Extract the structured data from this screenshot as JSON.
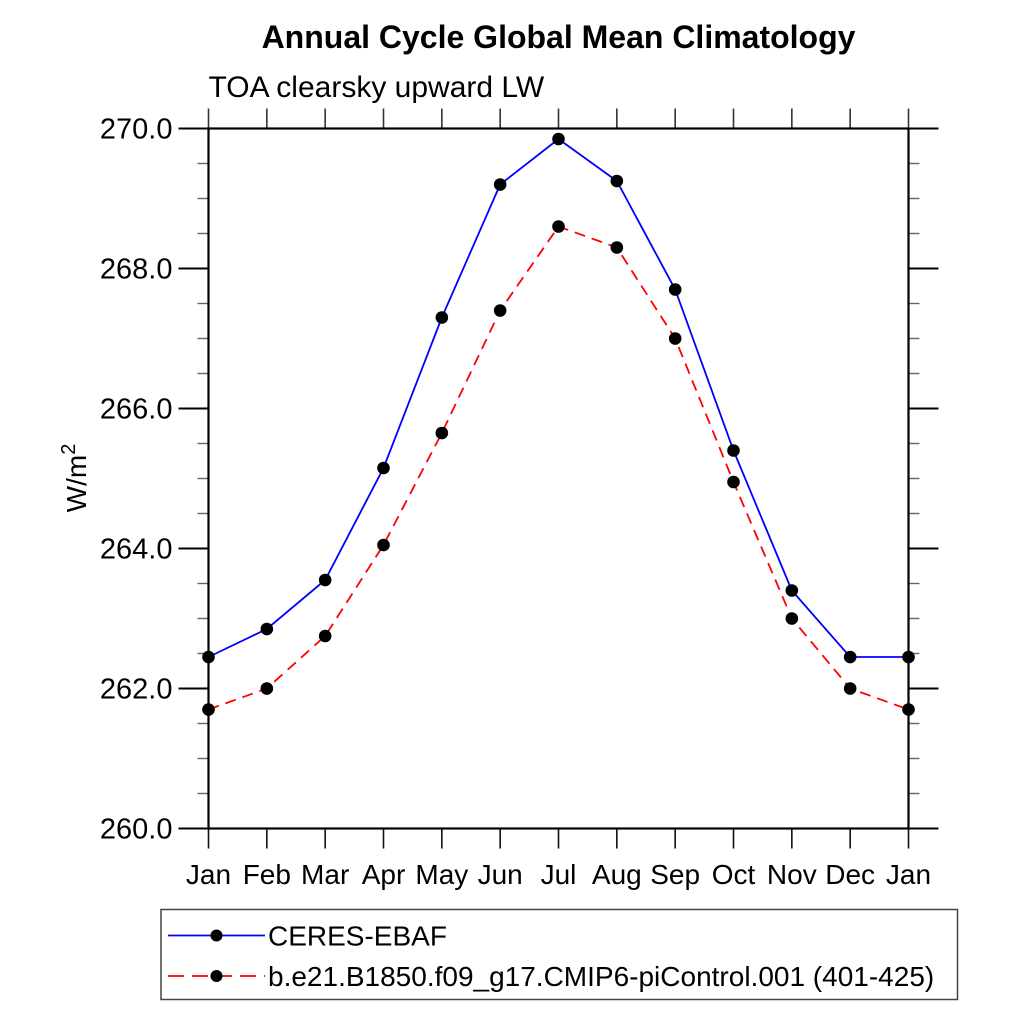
{
  "chart_data": {
    "type": "line",
    "title": "Annual Cycle Global Mean Climatology",
    "subtitle": "TOA clearsky upward LW",
    "ylabel_base": "W/m",
    "ylabel_exponent": "2",
    "x_tick_labels": [
      "Jan",
      "Feb",
      "Mar",
      "Apr",
      "May",
      "Jun",
      "Jul",
      "Aug",
      "Sep",
      "Oct",
      "Nov",
      "Dec",
      "Jan"
    ],
    "ylim": [
      260.0,
      270.0
    ],
    "y_major_tick_labels": [
      "260.0",
      "262.0",
      "264.0",
      "266.0",
      "268.0",
      "270.0"
    ],
    "y_major_tick_values": [
      260.0,
      262.0,
      264.0,
      266.0,
      268.0,
      270.0
    ],
    "y_minor_step": 0.5,
    "grid": false,
    "legend_position": "bottom",
    "axis_color": "#000000",
    "series": [
      {
        "name": "CERES-EBAF",
        "color": "#0000ff",
        "style": "solid",
        "marker": "filled-circle",
        "marker_color": "#000000",
        "values": [
          262.45,
          262.85,
          263.55,
          265.15,
          267.3,
          269.2,
          269.85,
          269.25,
          267.7,
          265.4,
          263.4,
          262.45,
          262.45
        ]
      },
      {
        "name": "b.e21.B1850.f09_g17.CMIP6-piControl.001 (401-425)",
        "color": "#ff0000",
        "style": "dashed",
        "marker": "filled-circle",
        "marker_color": "#000000",
        "values": [
          261.7,
          262.0,
          262.75,
          264.05,
          265.65,
          267.4,
          268.6,
          268.3,
          267.0,
          264.95,
          263.0,
          262.0,
          261.7
        ]
      }
    ]
  }
}
